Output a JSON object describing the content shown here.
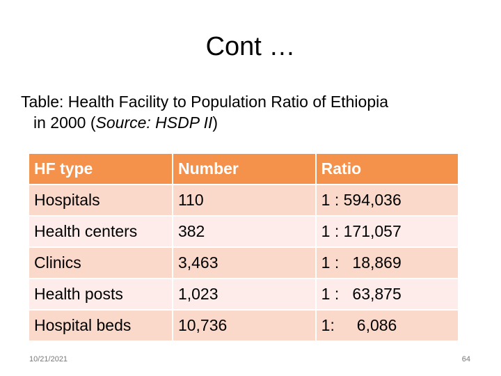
{
  "slide": {
    "title": "Cont …",
    "caption_line1": "Table: Health Facility to Population Ratio of Ethiopia",
    "caption_line2_pre": "in 2000 (",
    "caption_line2_italic": "Source: HSDP II",
    "caption_line2_post": ")",
    "date": "10/21/2021",
    "page_number": "64"
  },
  "table": {
    "headers": [
      "HF type",
      "Number",
      "Ratio"
    ],
    "rows": [
      [
        "Hospitals",
        "110",
        "1 : 594,036"
      ],
      [
        "Health centers",
        "382",
        "1 : 171,057"
      ],
      [
        "Clinics",
        "3,463",
        "1 :   18,869"
      ],
      [
        "Health posts",
        "1,023",
        "1 :   63,875"
      ],
      [
        "Hospital beds",
        "10,736",
        "1:     6,086"
      ]
    ]
  },
  "colors": {
    "header_bg": "#f4914a",
    "row_dark": "#fbd9ca",
    "row_light": "#fdecea"
  }
}
